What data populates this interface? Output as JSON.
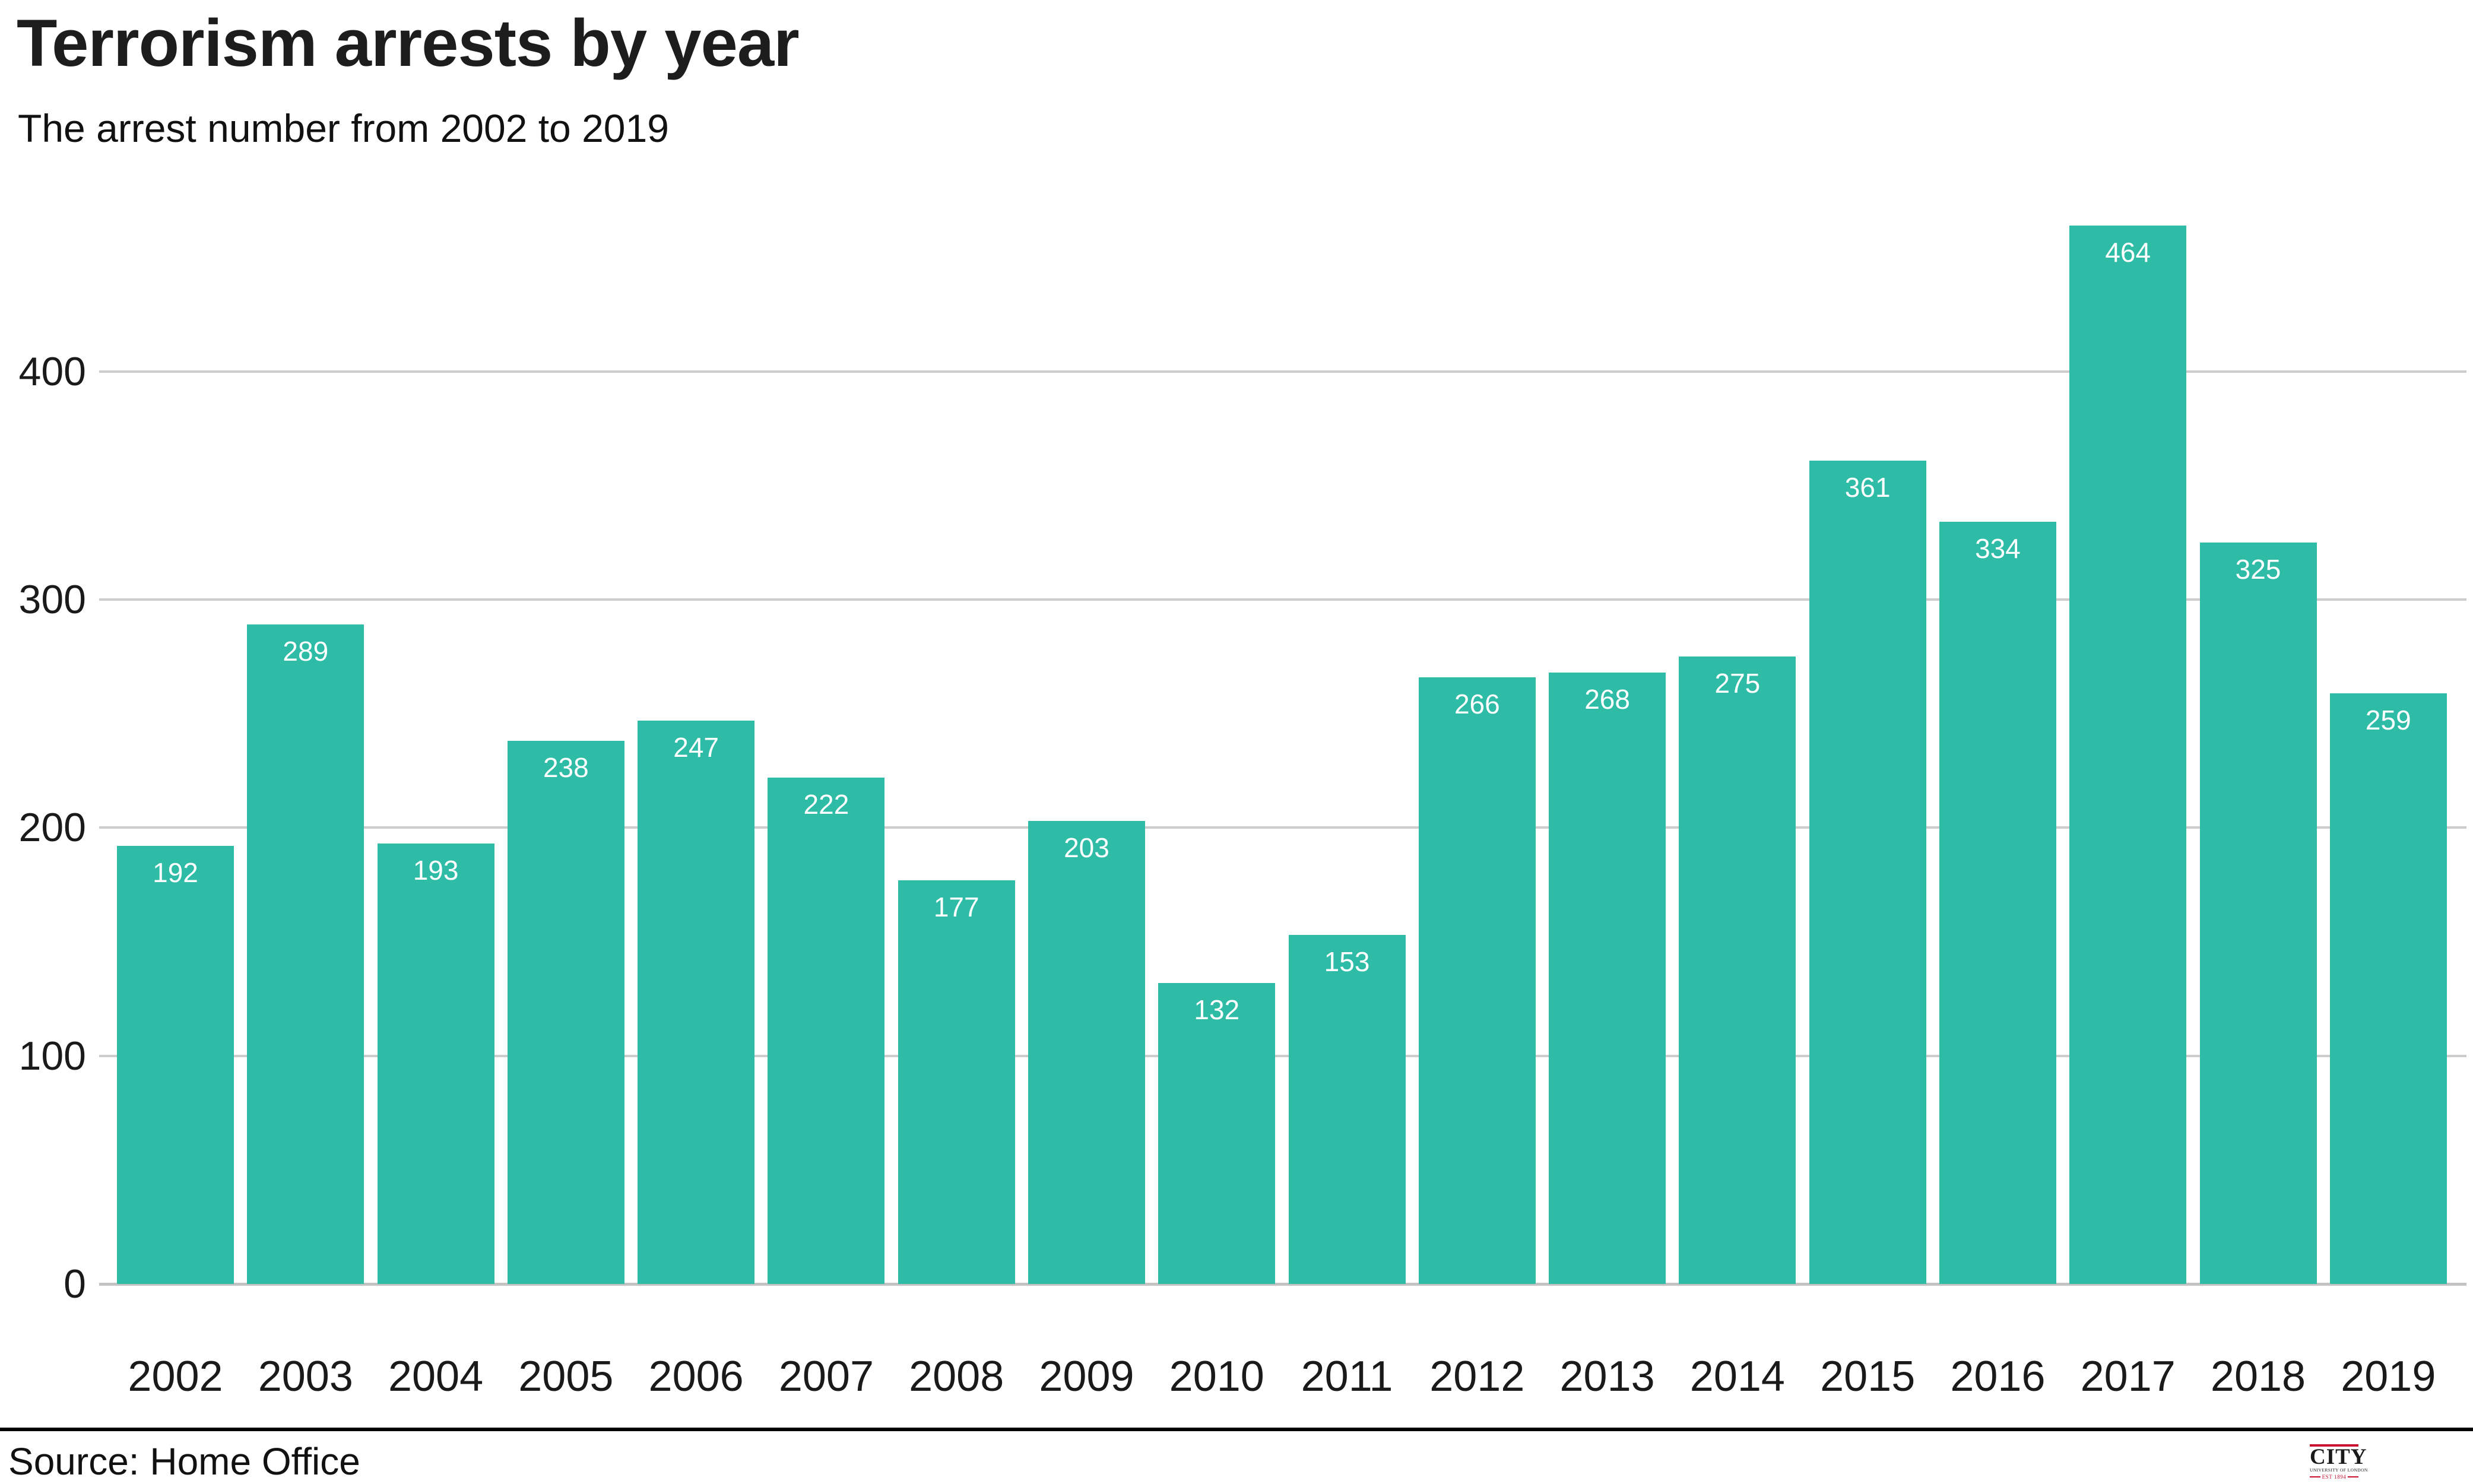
{
  "page": {
    "title": "Terrorism arrests by year",
    "subtitle": "The arrest number from 2002 to 2019"
  },
  "footer": {
    "source": "Source: Home Office",
    "logo": {
      "name": "CITY",
      "subname": "UNIVERSITY OF LONDON",
      "est": "EST 1894"
    }
  },
  "colors": {
    "bar": "#2ebca7",
    "grid": "#cccccc",
    "baseline": "#c3c3c3",
    "axis_text": "#1a1a1a",
    "bar_label": "#ffffff",
    "logo_red": "#c8102e"
  },
  "chart_data": {
    "type": "bar",
    "title": "Terrorism arrests by year",
    "subtitle": "The arrest number from 2002 to 2019",
    "categories": [
      "2002",
      "2003",
      "2004",
      "2005",
      "2006",
      "2007",
      "2008",
      "2009",
      "2010",
      "2011",
      "2012",
      "2013",
      "2014",
      "2015",
      "2016",
      "2017",
      "2018",
      "2019"
    ],
    "values": [
      192,
      289,
      193,
      238,
      247,
      222,
      177,
      203,
      132,
      153,
      266,
      268,
      275,
      361,
      334,
      464,
      325,
      259
    ],
    "xlabel": "",
    "ylabel": "",
    "yticks": [
      0,
      100,
      200,
      300,
      400
    ],
    "ylim": [
      0,
      475
    ],
    "grid": "horizontal",
    "legend": "none",
    "value_labels": "inside-top-white",
    "source": "Home Office"
  }
}
